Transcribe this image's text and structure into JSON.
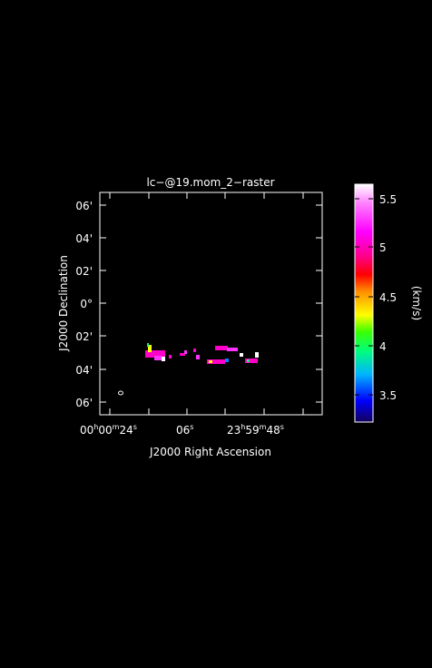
{
  "plot": {
    "title": "lc−@19.mom_2−raster",
    "xlabel": "J2000 Right Ascension",
    "ylabel": "J2000 Declination",
    "y_ticks": [
      "06'",
      "04'",
      "02'",
      "0°",
      "02'",
      "04'",
      "06'"
    ],
    "x_ticks": [
      {
        "h": "00",
        "m": "00",
        "s": "24"
      },
      {
        "s": "06"
      },
      {
        "h": "23",
        "m": "59",
        "s": "48"
      }
    ]
  },
  "colorbar": {
    "unit_label": "(km/s)",
    "ticks": [
      "5.5",
      "5",
      "4.5",
      "4",
      "3.5"
    ],
    "range": [
      3.2,
      5.65
    ],
    "colors": [
      "#12005a",
      "#0000ff",
      "#00b4ff",
      "#00ff7a",
      "#3cff00",
      "#ffff00",
      "#ff8c00",
      "#ff0000",
      "#ff0090",
      "#ff00ff",
      "#ff80ff",
      "#ffffff"
    ]
  },
  "emission": {
    "color_primary": "#ff00c8",
    "color_secondary": "#ff33ff",
    "color_low": "#ffff00",
    "color_mid": "#00ff66",
    "color_blue": "#0080ff"
  }
}
